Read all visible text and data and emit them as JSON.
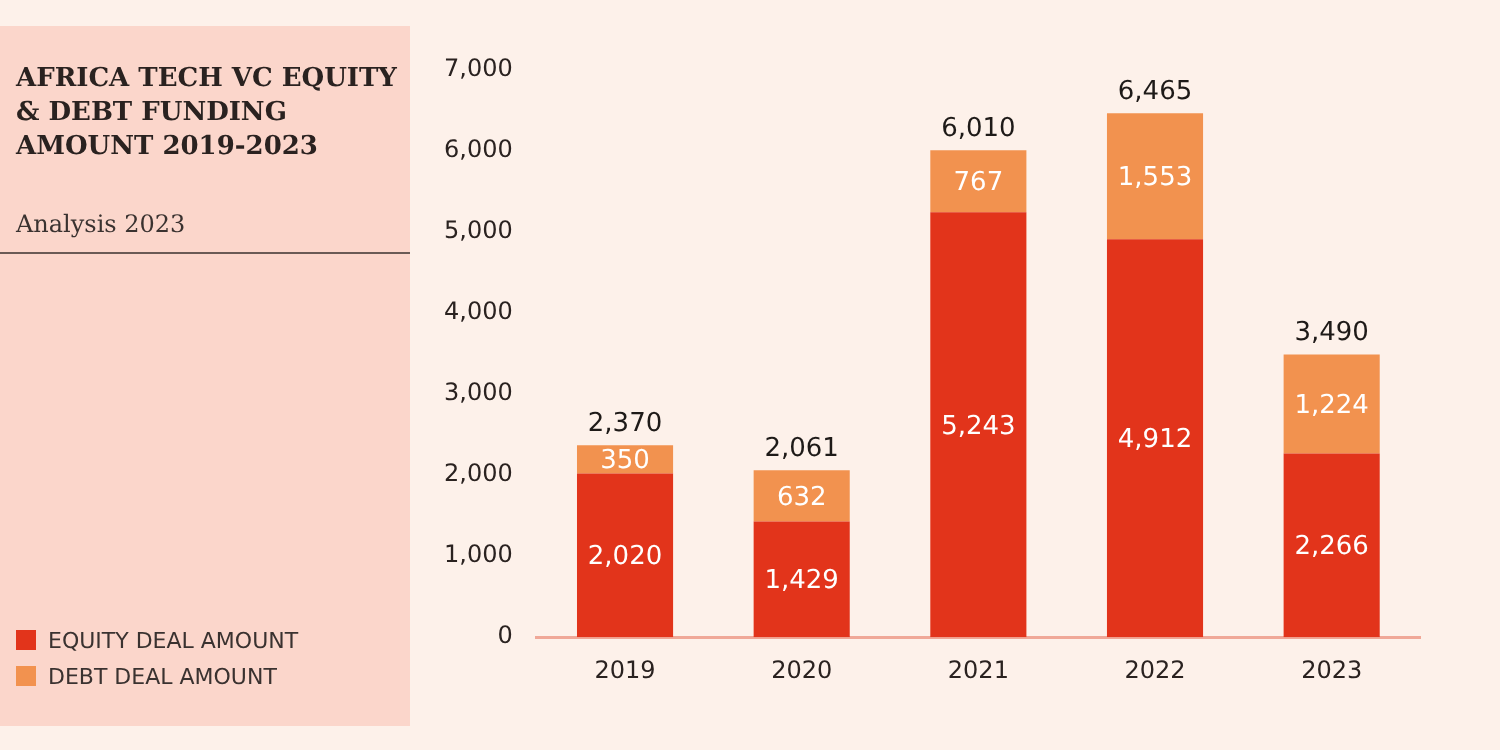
{
  "chart_data": {
    "type": "bar",
    "title": "AFRICA TECH VC EQUITY & DEBT FUNDING AMOUNT 2019-2023",
    "subtitle": "Analysis 2023",
    "categories": [
      "2019",
      "2020",
      "2021",
      "2022",
      "2023"
    ],
    "stacked": true,
    "series": [
      {
        "name": "EQUITY DEAL AMOUNT",
        "color": "#e2341b",
        "values": [
          2020,
          1429,
          5243,
          4912,
          2266
        ],
        "value_labels": [
          "2,020",
          "1,429",
          "5,243",
          "4,912",
          "2,266"
        ]
      },
      {
        "name": "DEBT DEAL AMOUNT",
        "color": "#f2924f",
        "values": [
          350,
          632,
          767,
          1553,
          1224
        ],
        "value_labels": [
          "350",
          "632",
          "767",
          "1,553",
          "1,224"
        ]
      }
    ],
    "totals": [
      "2,370",
      "2,061",
      "6,010",
      "6,465",
      "3,490"
    ],
    "ylim": [
      0,
      7000
    ],
    "yticks": [
      0,
      {
        "value": 1000,
        "label": "1,000"
      },
      {
        "value": 2000,
        "label": "2,000"
      },
      {
        "value": 3000,
        "label": "3,000"
      },
      {
        "value": 4000,
        "label": "4,000"
      },
      {
        "value": 5000,
        "label": "5,000"
      },
      {
        "value": 6000,
        "label": "6,000"
      },
      {
        "value": 7000,
        "label": "7,000"
      }
    ],
    "grid": false,
    "legend": "left"
  }
}
